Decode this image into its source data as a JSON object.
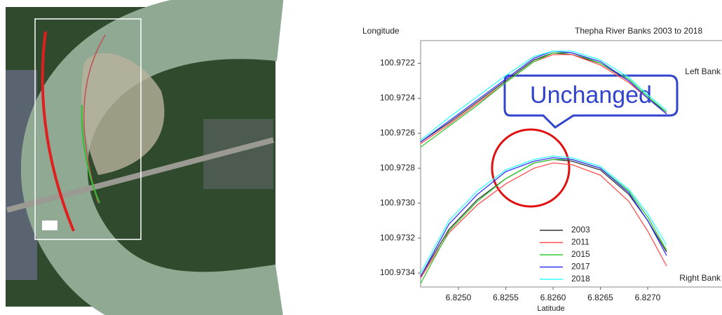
{
  "chart_data": {
    "type": "line",
    "title": "Thepha River Banks 2003 to 2018",
    "y_label": "Longitude",
    "x_label": "Latitude",
    "annotations": [
      "Left Bank",
      "Right Bank",
      "Unchanged"
    ],
    "x": [
      6.8246,
      6.8249,
      6.8252,
      6.8255,
      6.8258,
      6.826,
      6.8262,
      6.8265,
      6.8268,
      6.827,
      6.8272,
      null,
      6.8246,
      6.8249,
      6.8252,
      6.8255,
      6.8258,
      6.826,
      6.8262,
      6.8265,
      6.8268,
      6.827,
      6.8272
    ],
    "series": [
      {
        "name": "2003",
        "color": "#333333",
        "values": [
          100.97265,
          100.97254,
          100.97242,
          100.9723,
          100.97218,
          100.97214,
          100.97215,
          100.9722,
          100.9723,
          100.9724,
          100.97248,
          null,
          100.97342,
          100.97315,
          100.97298,
          100.97286,
          100.97277,
          100.97275,
          100.97276,
          100.97281,
          100.97295,
          100.9731,
          100.97328
        ]
      },
      {
        "name": "2011",
        "color": "#ff5050",
        "values": [
          100.97266,
          100.97255,
          100.97243,
          100.97231,
          100.97219,
          100.97215,
          100.97215,
          100.97221,
          100.97231,
          100.9724,
          100.97249,
          null,
          100.97343,
          100.97317,
          100.97301,
          100.97289,
          100.9728,
          100.97277,
          100.97278,
          100.97284,
          100.97299,
          100.97316,
          100.97336
        ]
      },
      {
        "name": "2015",
        "color": "#33cc33",
        "values": [
          100.97268,
          100.97256,
          100.97244,
          100.97231,
          100.97219,
          100.97214,
          100.97214,
          100.9722,
          100.97229,
          100.97239,
          100.97248,
          null,
          100.97346,
          100.97316,
          100.97299,
          100.97286,
          100.97277,
          100.97275,
          100.97275,
          100.9728,
          100.97293,
          100.97308,
          100.97327
        ]
      },
      {
        "name": "2017",
        "color": "#3333ff",
        "values": [
          100.97265,
          100.97253,
          100.97241,
          100.97229,
          100.97217,
          100.97213,
          100.97214,
          100.97219,
          100.9723,
          100.9724,
          100.97249,
          null,
          100.97342,
          100.97312,
          100.97295,
          100.97282,
          100.97276,
          100.97274,
          100.97275,
          100.9728,
          100.97294,
          100.9731,
          100.9733
        ]
      },
      {
        "name": "2018",
        "color": "#33ffff",
        "values": [
          100.97264,
          100.97251,
          100.97239,
          100.97227,
          100.97216,
          100.97213,
          100.97213,
          100.97218,
          100.97228,
          100.97238,
          100.97247,
          null,
          100.9734,
          100.9731,
          100.97293,
          100.97281,
          100.97275,
          100.97273,
          100.97274,
          100.97279,
          100.97292,
          100.97306,
          100.97324
        ]
      }
    ],
    "xlim": [
      6.8246,
      6.8273
    ],
    "ylim": [
      100.97348,
      100.97207
    ],
    "xticks": [
      {
        "value": 6.825,
        "label": "6.8250"
      },
      6.8255,
      {
        "value": 6.826,
        "label": "6.8260"
      },
      6.8265,
      {
        "value": 6.827,
        "label": "6.8270"
      }
    ],
    "yticks": [
      100.9722,
      100.9724,
      100.9726,
      100.9728,
      {
        "value": 100.973,
        "label": "100.9730"
      },
      100.9732,
      100.9734
    ]
  }
}
